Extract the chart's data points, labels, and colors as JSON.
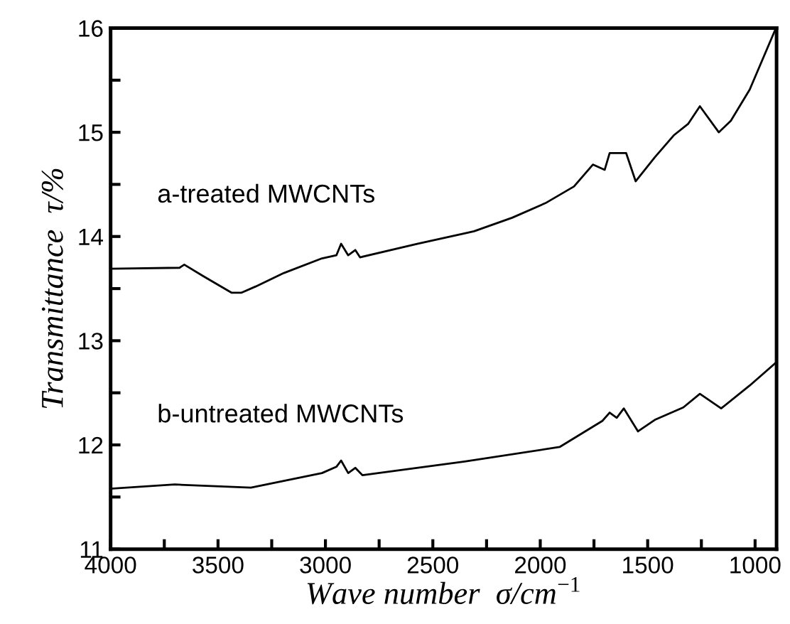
{
  "chart_data": {
    "type": "line",
    "xlabel": "Wave number  σ/cm$^{−1}$",
    "ylabel": "Transmittance  τ/%",
    "xlim": [
      4000,
      900
    ],
    "ylim": [
      11,
      16
    ],
    "xticks": [
      4000,
      {
        "value": 3750,
        "label": null
      },
      3500,
      {
        "value": 3250,
        "label": null
      },
      3000,
      {
        "value": 2750,
        "label": null
      },
      2500,
      {
        "value": 2250,
        "label": null
      },
      2000,
      {
        "value": 1750,
        "label": null
      },
      1500,
      {
        "value": 1250,
        "label": null
      },
      1000
    ],
    "yticks": [
      11,
      {
        "value": 11.5,
        "label": null
      },
      12,
      {
        "value": 12.5,
        "label": null
      },
      13,
      {
        "value": 13.5,
        "label": null
      },
      14,
      {
        "value": 14.5,
        "label": null
      },
      15,
      {
        "value": 15.5,
        "label": null
      },
      16
    ],
    "grid": false,
    "legend": false,
    "marker": "none",
    "line_style": "solid",
    "series": [
      {
        "name": "a-treated MWCNTs",
        "color": "#000000",
        "x": [
          4000,
          3679,
          3657,
          3569,
          3436,
          3392,
          3325,
          3193,
          3016,
          2949,
          2927,
          2894,
          2861,
          2839,
          2573,
          2352,
          2308,
          2131,
          1976,
          1843,
          1755,
          1700,
          1677,
          1600,
          1556,
          1467,
          1379,
          1312,
          1257,
          1169,
          1113,
          1025,
          903
        ],
        "values": [
          13.69,
          13.7,
          13.73,
          13.62,
          13.46,
          13.46,
          13.52,
          13.65,
          13.79,
          13.82,
          13.93,
          13.82,
          13.87,
          13.8,
          13.93,
          14.03,
          14.05,
          14.18,
          14.32,
          14.48,
          14.69,
          14.64,
          14.8,
          14.8,
          14.53,
          14.76,
          14.97,
          15.08,
          15.25,
          15.0,
          15.11,
          15.41,
          16.0
        ]
      },
      {
        "name": "b-untreated MWCNTs",
        "color": "#000000",
        "x": [
          4000,
          3701,
          3347,
          3016,
          2949,
          2927,
          2894,
          2861,
          2828,
          2352,
          1910,
          1711,
          1677,
          1644,
          1611,
          1545,
          1467,
          1334,
          1257,
          1158,
          1025,
          903
        ],
        "values": [
          11.58,
          11.62,
          11.59,
          11.73,
          11.79,
          11.85,
          11.73,
          11.78,
          11.71,
          11.84,
          11.98,
          12.23,
          12.31,
          12.26,
          12.35,
          12.13,
          12.24,
          12.36,
          12.49,
          12.35,
          12.57,
          12.79
        ]
      }
    ]
  }
}
